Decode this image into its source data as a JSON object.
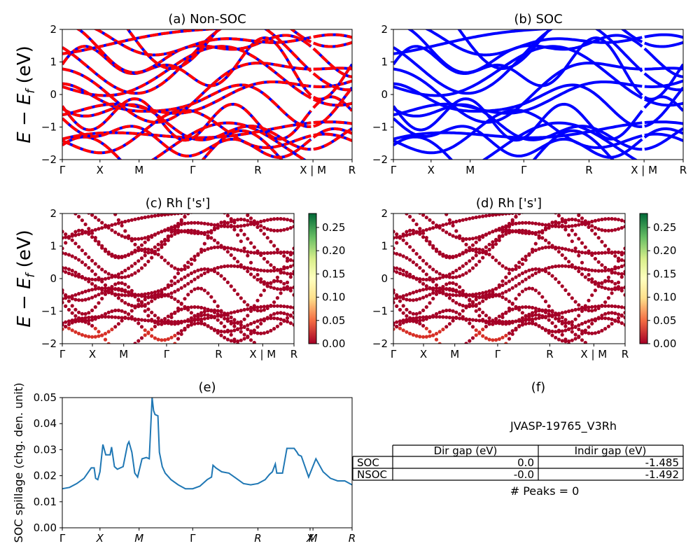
{
  "figure": {
    "ylabel_main": "E − E",
    "ylabel_sub": "f",
    "ylabel_unit": " (eV)"
  },
  "panels": {
    "a": {
      "title": "(a) Non-SOC"
    },
    "b": {
      "title": "(b) SOC"
    },
    "c": {
      "title": "(c)  Rh ['s']"
    },
    "d": {
      "title": "(d) Rh ['s']"
    },
    "e": {
      "title": "(e)"
    },
    "f": {
      "title": "(f)"
    }
  },
  "band_axes": {
    "ylim": [
      -2,
      2
    ],
    "yticks": [
      "2",
      "1",
      "0",
      "−1",
      "−2"
    ],
    "kpath_labels": [
      "Γ",
      "X",
      "M",
      "Γ",
      "R",
      "X | M",
      "R"
    ],
    "colors": {
      "nsoc_band": "#ff0000",
      "soc_band": "#0000ff"
    }
  },
  "colorbar": {
    "ticks": [
      "0.25",
      "0.20",
      "0.15",
      "0.10",
      "0.05",
      "0.00"
    ],
    "range": [
      0,
      0.28
    ],
    "colormap": "RdYlGn"
  },
  "info": {
    "material": "JVASP-19765_V3Rh",
    "columns": [
      "Dir gap (eV)",
      "Indir gap (eV)"
    ],
    "rows": [
      {
        "label": "SOC",
        "dir": "0.0",
        "indir": "-1.485"
      },
      {
        "label": "NSOC",
        "dir": "-0.0",
        "indir": "-1.492"
      }
    ],
    "peaks": "# Peaks = 0"
  },
  "chart_data": [
    {
      "type": "line",
      "title": "(e)",
      "ylabel": "SOC spillage (chg. den. unit)",
      "xlabel": "",
      "ylim": [
        0,
        0.05
      ],
      "yticks": [
        "0.05",
        "0.04",
        "0.03",
        "0.02",
        "0.01",
        "0.00"
      ],
      "xticks": [
        "Γ",
        "X",
        "M",
        "Γ",
        "R",
        "X",
        "M",
        "R"
      ],
      "color": "#1f77b4",
      "x": [
        0,
        5,
        10,
        15,
        20,
        22,
        23,
        24.5,
        26,
        28,
        30,
        33,
        34,
        36,
        38,
        42,
        45,
        46,
        48,
        50,
        52,
        55,
        58,
        60,
        62,
        63,
        64,
        66,
        67,
        69,
        71,
        75,
        80,
        85,
        90,
        95,
        100,
        103,
        104,
        106,
        110,
        115,
        120,
        125,
        130,
        135,
        140,
        143,
        145,
        147,
        148,
        149,
        152,
        155,
        158,
        160,
        162,
        163,
        165,
        170,
        175,
        180,
        185,
        190,
        195,
        200
      ],
      "y": [
        0.015,
        0.0155,
        0.017,
        0.019,
        0.023,
        0.023,
        0.019,
        0.0185,
        0.0215,
        0.032,
        0.028,
        0.028,
        0.031,
        0.0235,
        0.0225,
        0.0235,
        0.032,
        0.033,
        0.029,
        0.021,
        0.0195,
        0.0265,
        0.027,
        0.0265,
        0.05,
        0.045,
        0.0435,
        0.043,
        0.029,
        0.0235,
        0.021,
        0.0185,
        0.0165,
        0.015,
        0.015,
        0.016,
        0.0185,
        0.0195,
        0.024,
        0.023,
        0.0215,
        0.021,
        0.019,
        0.017,
        0.0165,
        0.017,
        0.0185,
        0.0205,
        0.0215,
        0.0245,
        0.021,
        0.021,
        0.021,
        0.0305,
        0.0305,
        0.0305,
        0.029,
        0.028,
        0.0275,
        0.0195,
        0.0265,
        0.0215,
        0.019,
        0.018,
        0.018,
        0.0165
      ]
    }
  ]
}
